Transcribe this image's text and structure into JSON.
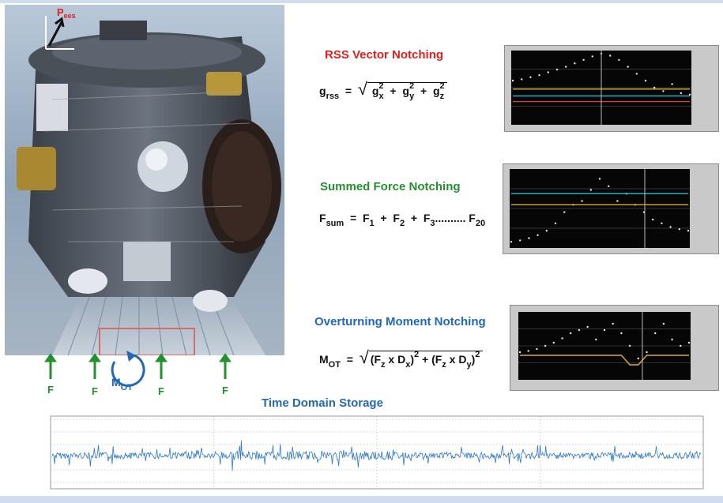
{
  "photo": {
    "axis_label_p": "P",
    "axis_label_sub": "ees"
  },
  "forces": {
    "labels": [
      "F",
      "F",
      "F",
      "F"
    ],
    "moment_label": "M",
    "moment_sub": "OT"
  },
  "rss": {
    "title": "RSS Vector Notching",
    "eq_lhs": "g",
    "eq_lhs_sub": "rss",
    "eq_terms": [
      {
        "base": "g",
        "sub": "x",
        "sup": "2"
      },
      {
        "base": "g",
        "sub": "y",
        "sup": "2"
      },
      {
        "base": "g",
        "sub": "z",
        "sup": "2"
      }
    ]
  },
  "sum": {
    "title": "Summed Force Notching",
    "eq_lhs": "F",
    "eq_lhs_sub": "sum",
    "eq_terms": [
      "F",
      "F",
      "F"
    ],
    "eq_term_subs": [
      "1",
      "2",
      "3"
    ],
    "eq_dots": "..........",
    "eq_last": "F",
    "eq_last_sub": "20"
  },
  "ot": {
    "title": "Overturning Moment Notching",
    "eq_lhs": "M",
    "eq_lhs_sub": "OT"
  },
  "time": {
    "title": "Time Domain Storage"
  },
  "colors": {
    "red": "#e0201f",
    "green": "#23922e",
    "blue": "#2268b5",
    "trace": "#2e78c8"
  },
  "chart_data": [
    {
      "type": "line",
      "title": "",
      "xlabel": "",
      "ylabel": "",
      "series": [
        {
          "values": [
            0.6,
            0.62,
            0.65,
            0.68,
            0.72,
            0.76,
            0.8,
            0.85,
            0.9,
            0.95,
            0.99,
            0.96,
            0.9,
            0.8,
            0.7,
            0.6,
            0.5,
            0.45,
            0.55,
            0.42,
            0.4
          ]
        },
        {
          "values": [
            0.48,
            0.48,
            0.48,
            0.48,
            0.48,
            0.48,
            0.48,
            0.48,
            0.48,
            0.48,
            0.48,
            0.48,
            0.48,
            0.48,
            0.48,
            0.48,
            0.48,
            0.48,
            0.48,
            0.48,
            0.48
          ]
        },
        {
          "values": [
            0.38,
            0.38,
            0.38,
            0.38,
            0.38,
            0.38,
            0.38,
            0.38,
            0.38,
            0.38,
            0.38,
            0.38,
            0.38,
            0.38,
            0.38,
            0.38,
            0.38,
            0.38,
            0.38,
            0.38,
            0.38
          ]
        },
        {
          "values": [
            0.3,
            0.3,
            0.3,
            0.3,
            0.3,
            0.3,
            0.3,
            0.3,
            0.3,
            0.3,
            0.3,
            0.3,
            0.3,
            0.3,
            0.3,
            0.3,
            0.3,
            0.3,
            0.3,
            0.3,
            0.3
          ]
        }
      ],
      "cursor_x": 0.5
    },
    {
      "type": "line",
      "title": "",
      "xlabel": "",
      "ylabel": "",
      "series": [
        {
          "values": [
            0.05,
            0.07,
            0.1,
            0.14,
            0.2,
            0.3,
            0.45,
            0.55,
            0.6,
            0.75,
            0.9,
            0.8,
            0.6,
            0.7,
            0.55,
            0.45,
            0.35,
            0.3,
            0.25,
            0.22,
            0.2
          ]
        },
        {
          "values": [
            0.55,
            0.55,
            0.55,
            0.55,
            0.55,
            0.55,
            0.55,
            0.55,
            0.55,
            0.55,
            0.55,
            0.55,
            0.55,
            0.55,
            0.55,
            0.55,
            0.55,
            0.55,
            0.55,
            0.55,
            0.55
          ]
        },
        {
          "values": [
            0.7,
            0.7,
            0.7,
            0.7,
            0.7,
            0.7,
            0.7,
            0.7,
            0.7,
            0.7,
            0.7,
            0.7,
            0.7,
            0.7,
            0.7,
            0.7,
            0.7,
            0.7,
            0.7,
            0.7,
            0.7
          ]
        }
      ],
      "cursor_x": 0.75
    },
    {
      "type": "line",
      "title": "",
      "xlabel": "",
      "ylabel": "",
      "series": [
        {
          "values": [
            0.4,
            0.42,
            0.45,
            0.5,
            0.55,
            0.62,
            0.7,
            0.75,
            0.8,
            0.6,
            0.75,
            0.85,
            0.7,
            0.5,
            0.3,
            0.4,
            0.7,
            0.85,
            0.6,
            0.5,
            0.55
          ]
        },
        {
          "values": [
            0.35,
            0.35,
            0.35,
            0.35,
            0.35,
            0.35,
            0.35,
            0.35,
            0.35,
            0.35,
            0.35,
            0.35,
            0.35,
            0.2,
            0.2,
            0.35,
            0.35,
            0.35,
            0.35,
            0.35,
            0.35
          ]
        }
      ],
      "cursor_x": 0.72
    }
  ]
}
